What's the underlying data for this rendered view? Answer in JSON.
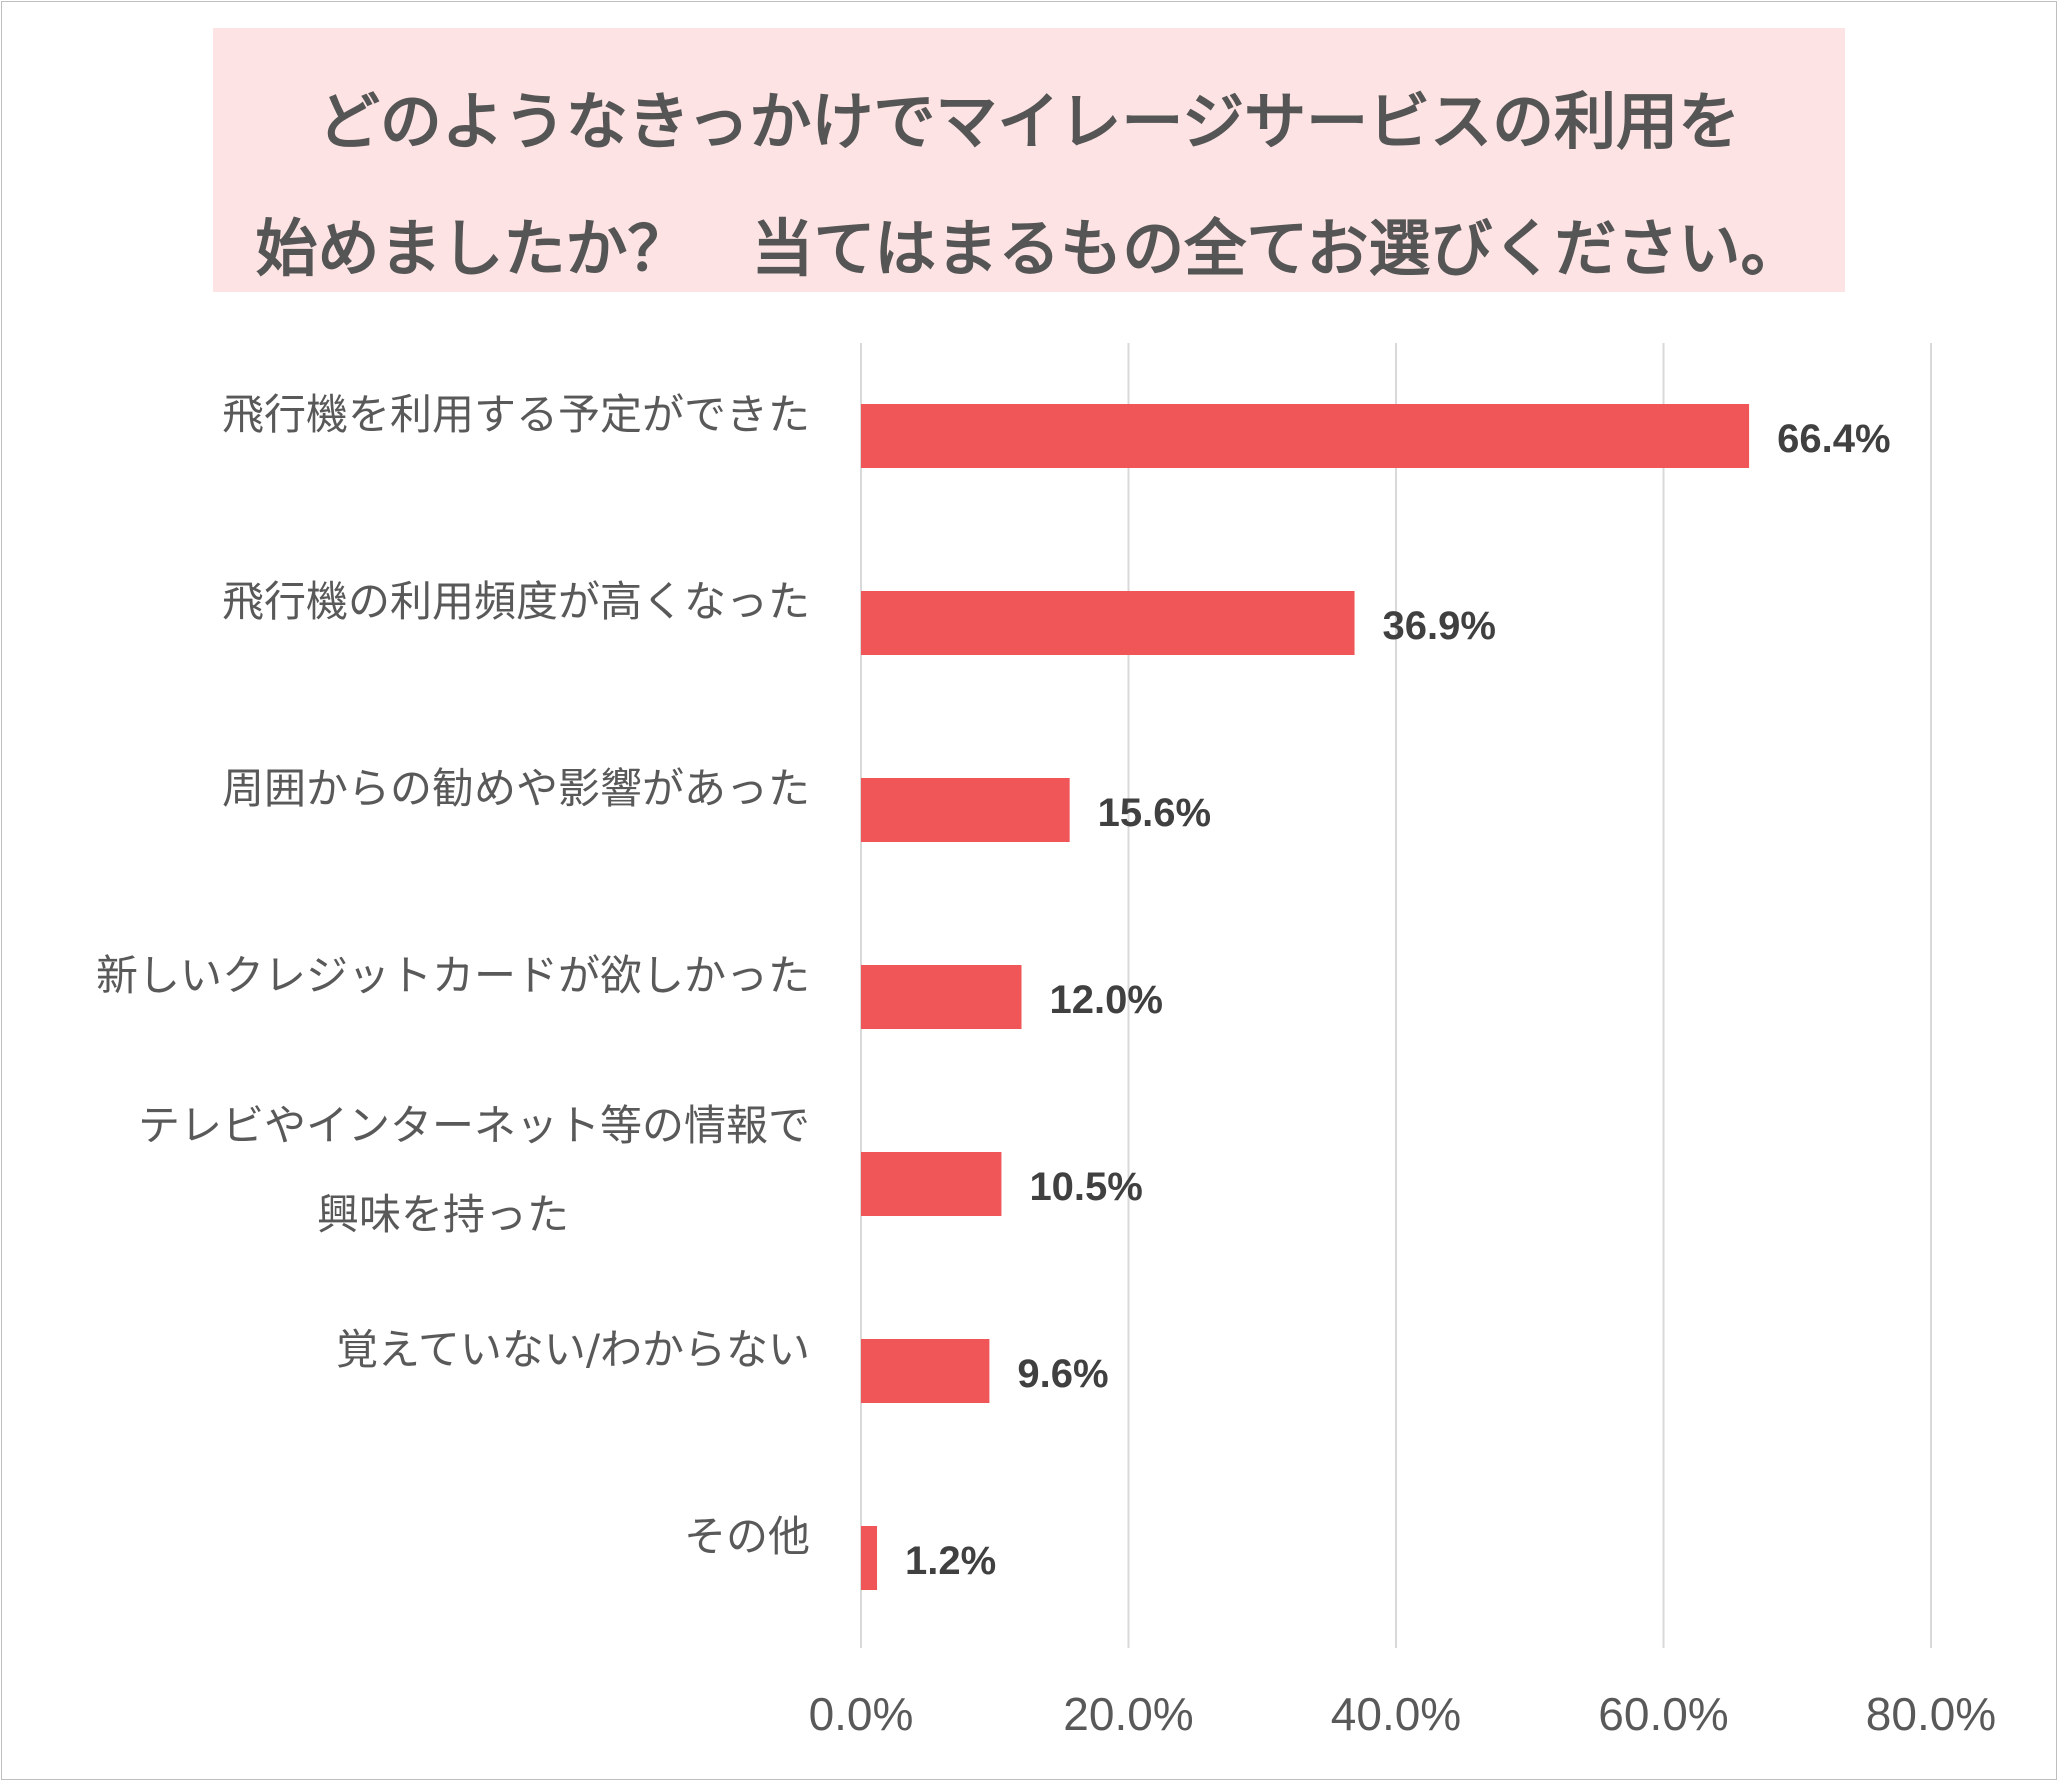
{
  "title": {
    "line1": "どのようなきっかけでマイレージサービスの利用を",
    "line2": "始めましたか？　当てはまるもの全てお選びください。"
  },
  "colors": {
    "bar": "#f05557",
    "title_bg": "#fde3e3",
    "grid": "#d9d9d9",
    "text": "#595959"
  },
  "chart_data": {
    "type": "bar",
    "orientation": "horizontal",
    "categories": [
      [
        "飛行機を利用する予定ができた"
      ],
      [
        "飛行機の利用頻度が高くなった"
      ],
      [
        "周囲からの勧めや影響があった"
      ],
      [
        "新しいクレジットカードが欲しかった"
      ],
      [
        "テレビやインターネット等の情報で",
        "興味を持った"
      ],
      [
        "覚えていない/わからない"
      ],
      [
        "その他"
      ]
    ],
    "values": [
      66.4,
      36.9,
      15.6,
      12.0,
      10.5,
      9.6,
      1.2
    ],
    "value_labels": [
      "66.4%",
      "36.9%",
      "15.6%",
      "12.0%",
      "10.5%",
      "9.6%",
      "1.2%"
    ],
    "xlim": [
      0,
      80
    ],
    "ticks": [
      0,
      20,
      40,
      60,
      80
    ],
    "tick_labels": [
      "0.0%",
      "20.0%",
      "40.0%",
      "60.0%",
      "80.0%"
    ],
    "grid": true,
    "legend": "none"
  }
}
